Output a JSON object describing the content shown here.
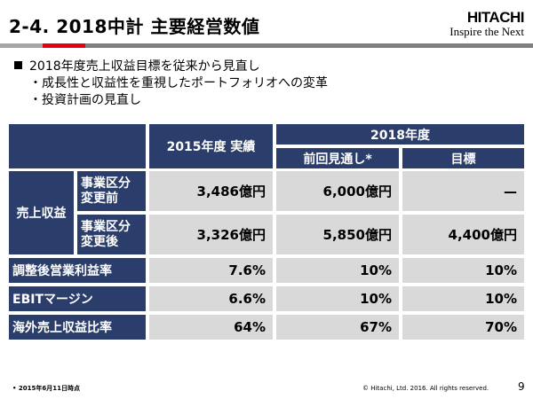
{
  "title": "2-4. 2018中計 主要経営数値",
  "logo": {
    "name": "HITACHI",
    "tagline": "Inspire the Next"
  },
  "colors": {
    "header_bg": "#2b3e6b",
    "cell_bg": "#d9d9d9",
    "accent": "#e60012"
  },
  "bullets": {
    "main": "2018年度売上収益目標を従来から見直し",
    "subs": [
      "・成長性と収益性を重視したポートフォリオへの変革",
      "・投資計画の見直し"
    ]
  },
  "table": {
    "headers": {
      "col_2015": "2015年度 実績",
      "group_2018": "2018年度",
      "col_prev": "前回見通し*",
      "col_target": "目標"
    },
    "revenue_label": "売上収益",
    "revenue_rows": [
      {
        "label": "事業区分\n変更前",
        "label1": "事業区分",
        "label2": "変更前",
        "v2015": "3,486億円",
        "prev": "6,000億円",
        "target": "—"
      },
      {
        "label1": "事業区分",
        "label2": "変更後",
        "v2015": "3,326億円",
        "prev": "5,850億円",
        "target": "4,400億円"
      }
    ],
    "rows": [
      {
        "label": "調整後営業利益率",
        "v2015": "7.6%",
        "prev": "10%",
        "target": "10%"
      },
      {
        "label": "EBITマージン",
        "v2015": "6.6%",
        "prev": "10%",
        "target": "10%"
      },
      {
        "label": "海外売上収益比率",
        "v2015": "64%",
        "prev": "67%",
        "target": "70%"
      }
    ]
  },
  "footer": {
    "note": "2015年6月11日時点",
    "copyright": "© Hitachi, Ltd. 2016. All rights reserved.",
    "page": "9"
  }
}
